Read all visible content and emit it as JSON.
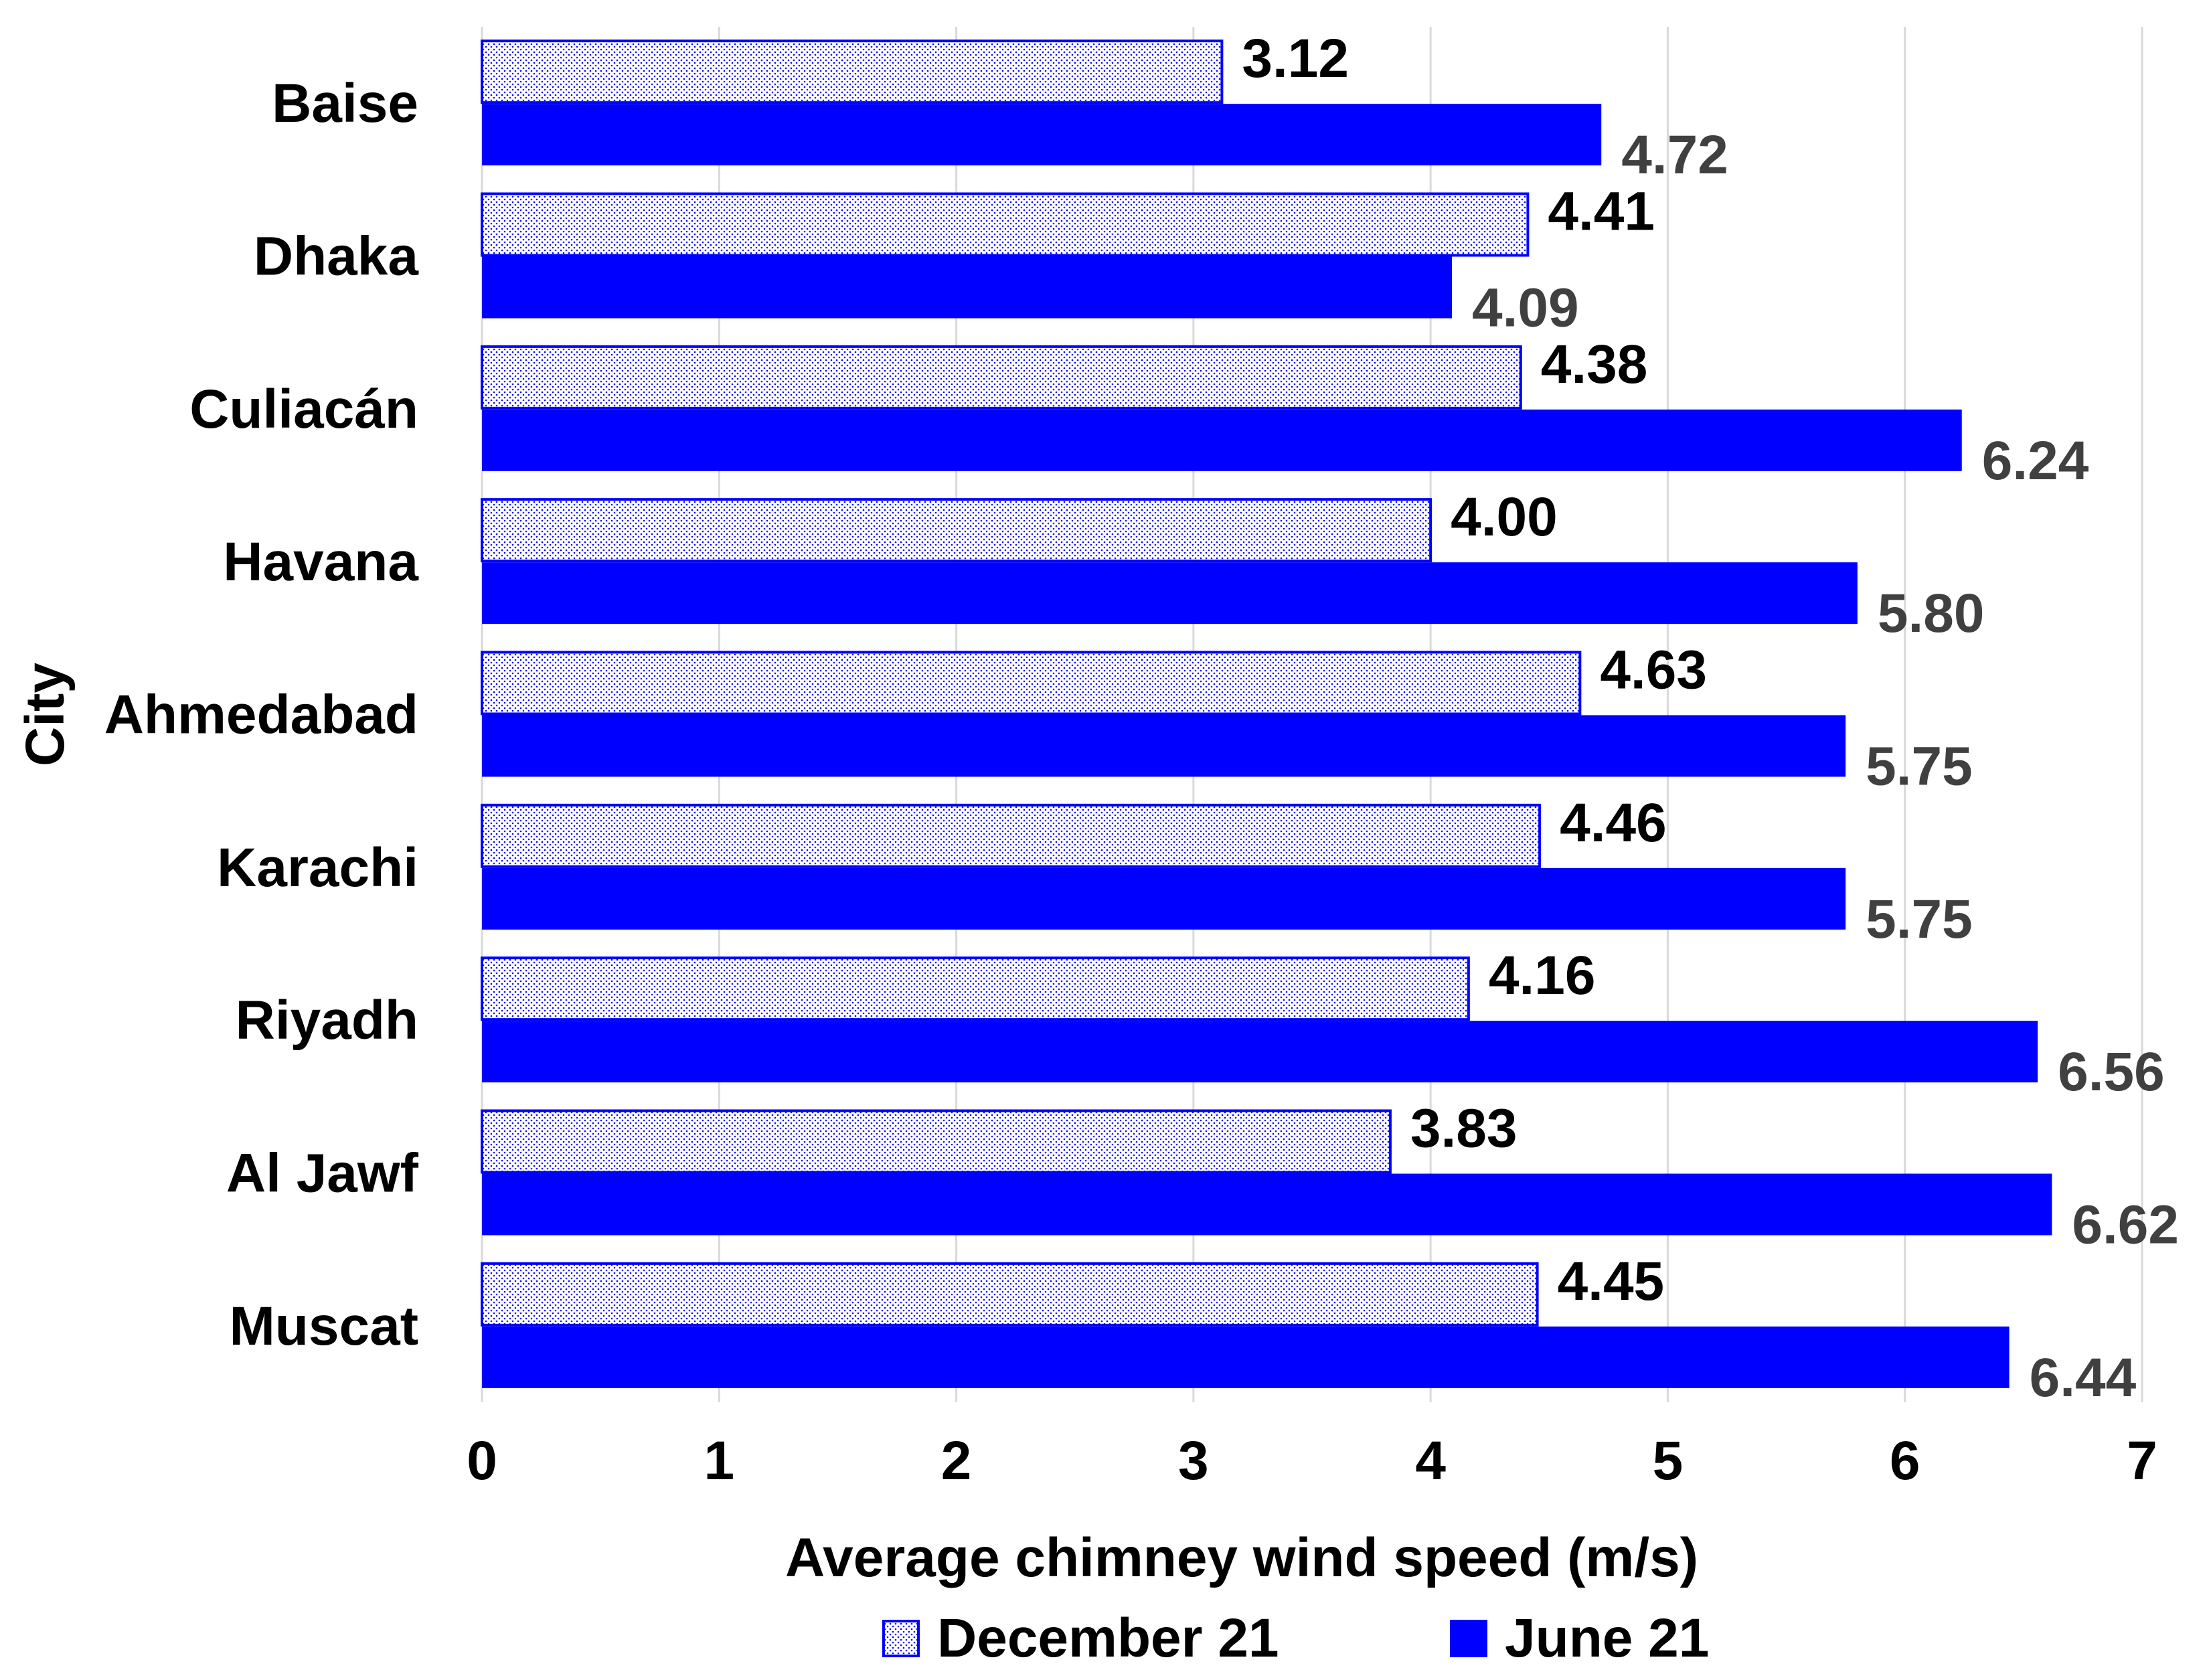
{
  "chart_data": {
    "type": "bar",
    "orientation": "horizontal",
    "title": "",
    "xlabel": "Average chimney wind speed (m/s)",
    "ylabel": "City",
    "xlim": [
      0,
      7
    ],
    "xticks": [
      "0",
      "1",
      "2",
      "3",
      "4",
      "5",
      "6",
      "7"
    ],
    "grid": true,
    "legend_position": "bottom",
    "categories": [
      "Baise",
      "Dhaka",
      "Culiacán",
      "Havana",
      "Ahmedabad",
      "Karachi",
      "Riyadh",
      "Al Jawf",
      "Muscat"
    ],
    "series": [
      {
        "name": "December 21",
        "values": [
          3.12,
          4.41,
          4.38,
          4.0,
          4.63,
          4.46,
          4.16,
          3.83,
          4.45
        ],
        "labels": [
          "3.12",
          "4.41",
          "4.38",
          "4.00",
          "4.63",
          "4.46",
          "4.16",
          "3.83",
          "4.45"
        ],
        "fill": "#ffffff",
        "pattern_color": "#0000ff",
        "label_color": "#000000"
      },
      {
        "name": "June 21",
        "values": [
          4.72,
          4.09,
          6.24,
          5.8,
          5.75,
          5.75,
          6.56,
          6.62,
          6.44
        ],
        "labels": [
          "4.72",
          "4.09",
          "6.24",
          "5.80",
          "5.75",
          "5.75",
          "6.56",
          "6.62",
          "6.44"
        ],
        "fill": "#0000ff",
        "label_color": "#404040"
      }
    ]
  }
}
